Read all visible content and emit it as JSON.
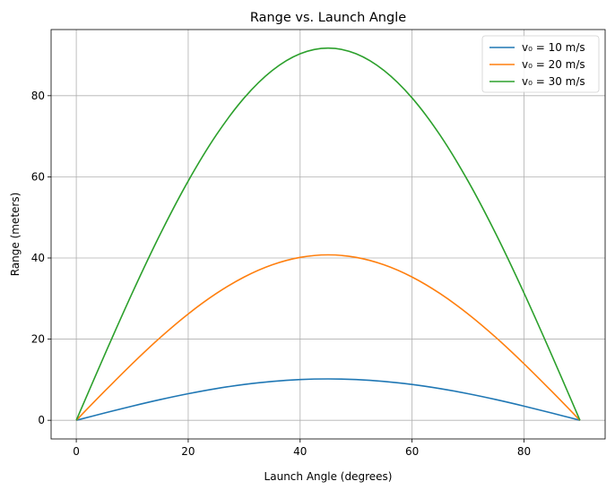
{
  "chart_data": {
    "type": "line",
    "title": "Range vs. Launch Angle",
    "xlabel": "Launch Angle (degrees)",
    "ylabel": "Range (meters)",
    "xlim": [
      -4.5,
      94.5
    ],
    "ylim": [
      -4.6,
      96.3
    ],
    "xticks": [
      0,
      20,
      40,
      60,
      80
    ],
    "yticks": [
      0,
      20,
      40,
      60,
      80
    ],
    "grid": true,
    "legend_position": "top-right",
    "x": [
      0,
      5,
      10,
      15,
      20,
      25,
      30,
      35,
      40,
      45,
      50,
      55,
      60,
      65,
      70,
      75,
      80,
      85,
      90
    ],
    "series": [
      {
        "name": "v₀ = 10 m/s",
        "color": "#1f77b4",
        "values": [
          0,
          1.77,
          3.49,
          5.1,
          6.55,
          7.81,
          8.83,
          9.58,
          10.04,
          10.19,
          10.04,
          9.58,
          8.83,
          7.81,
          6.55,
          5.1,
          3.49,
          1.77,
          0
        ]
      },
      {
        "name": "v₀ = 20 m/s",
        "color": "#ff7f0e",
        "values": [
          0,
          7.08,
          13.94,
          20.39,
          26.21,
          31.23,
          35.31,
          38.31,
          40.15,
          40.77,
          40.15,
          38.31,
          35.31,
          31.23,
          26.21,
          20.39,
          13.94,
          7.08,
          0
        ]
      },
      {
        "name": "v₀ = 30 m/s",
        "color": "#2ca02c",
        "values": [
          0,
          15.93,
          31.37,
          45.87,
          58.97,
          70.28,
          79.45,
          86.2,
          90.34,
          91.74,
          90.34,
          86.2,
          79.45,
          70.28,
          58.97,
          45.87,
          31.37,
          15.93,
          0
        ]
      }
    ]
  }
}
